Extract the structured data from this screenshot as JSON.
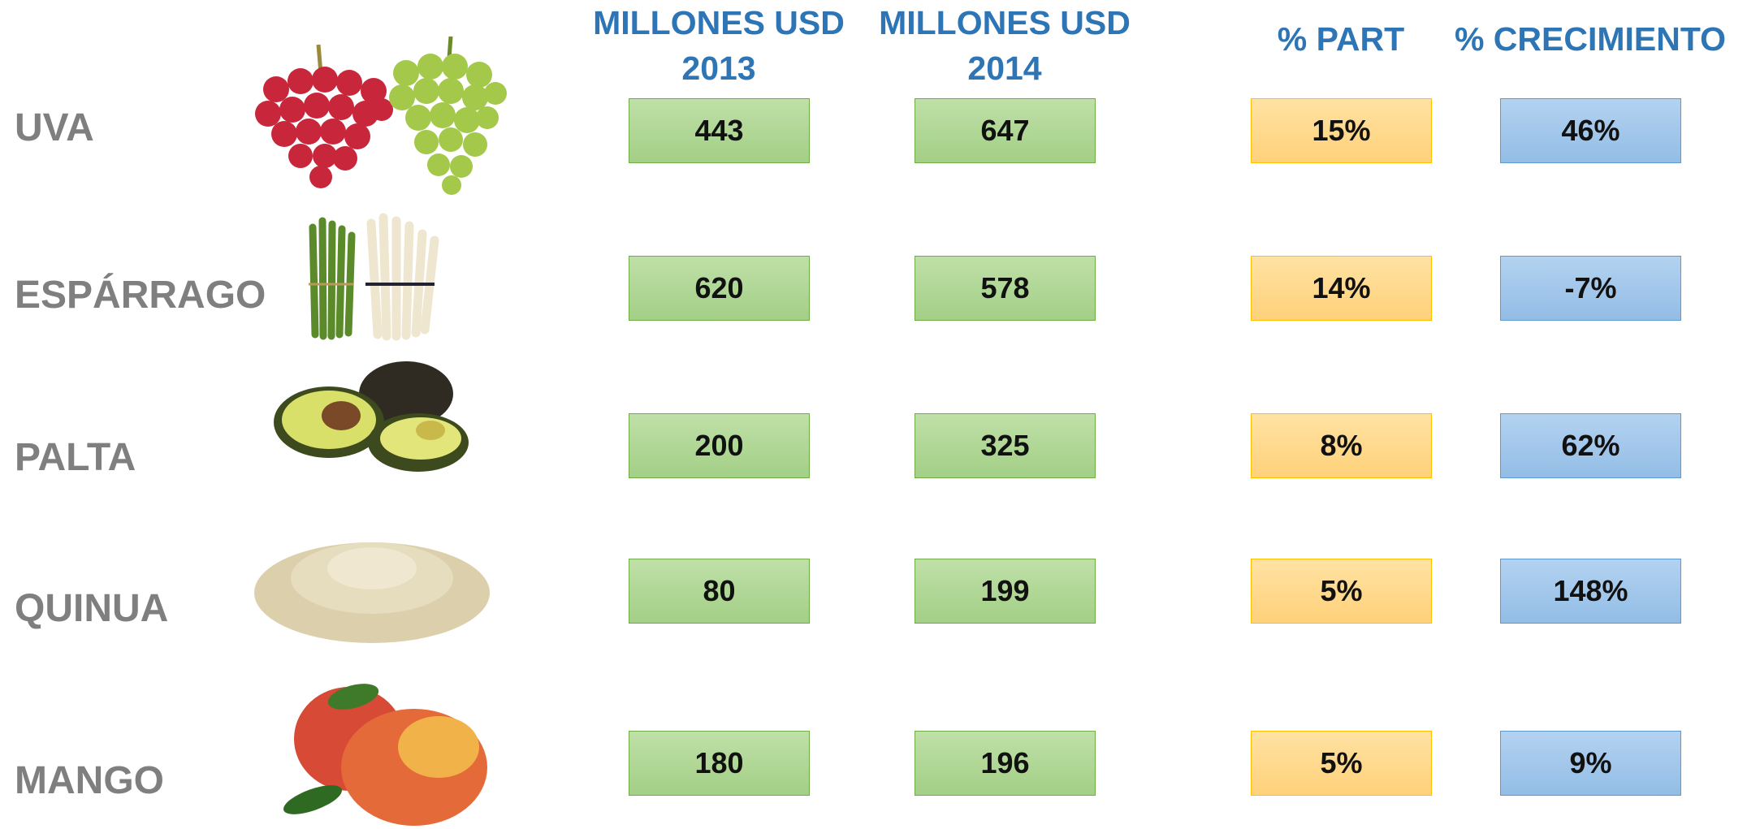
{
  "table": {
    "headers": [
      {
        "lines": [
          "MILLONES USD",
          "2013"
        ]
      },
      {
        "lines": [
          "MILLONES USD",
          "2014"
        ]
      },
      {
        "lines": [
          "% PART"
        ]
      },
      {
        "lines": [
          "% CRECIMIENTO"
        ]
      }
    ],
    "rows": [
      [
        "UVA",
        "443",
        "647",
        "15%",
        "46%"
      ],
      [
        "ESPÁRRAGO",
        "620",
        "578",
        "14%",
        "-7%"
      ],
      [
        "PALTA",
        "200",
        "325",
        "8%",
        "62%"
      ],
      [
        "QUINUA",
        "80",
        "199",
        "5%",
        "148%"
      ],
      [
        "MANGO",
        "180",
        "196",
        "5%",
        "9%"
      ]
    ]
  }
}
